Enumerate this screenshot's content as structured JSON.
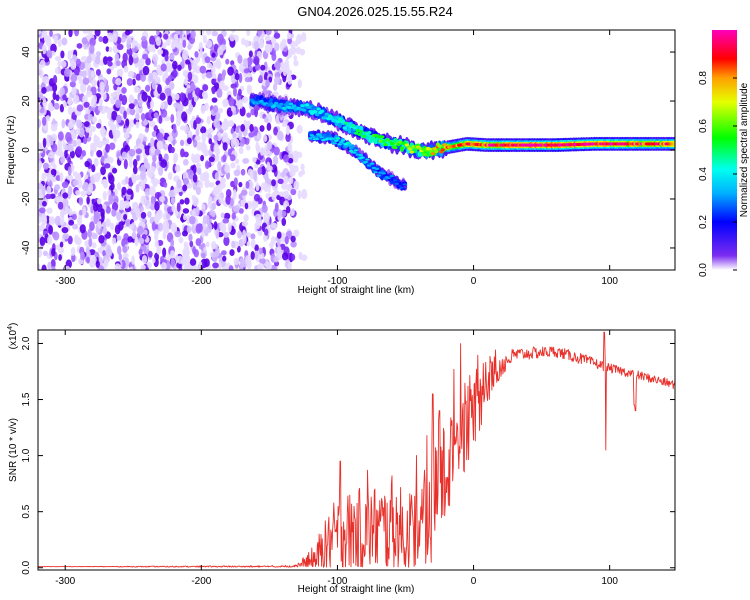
{
  "title": "GN04.2026.025.15.55.R24",
  "chart_data": [
    {
      "type": "heatmap",
      "name": "spectrogram",
      "xlabel": "Height of straight line (km)",
      "ylabel": "Frequency (Hz)",
      "xlim": [
        -320,
        148
      ],
      "ylim": [
        -49,
        49
      ],
      "xticks": [
        -300,
        -200,
        -100,
        0,
        100
      ],
      "xtick_labels": [
        "-300",
        "-200",
        "-100",
        "0",
        "100"
      ],
      "yticks": [
        -40,
        -20,
        0,
        20,
        40
      ],
      "ytick_labels": [
        "-40",
        "-20",
        "0",
        "20",
        "40"
      ],
      "noise_region": {
        "x_from": -320,
        "x_to": -132
      },
      "ridge": [
        {
          "x": -163,
          "y": 20.5,
          "a": 0.3
        },
        {
          "x": -150,
          "y": 19.0,
          "a": 0.32
        },
        {
          "x": -140,
          "y": 18.0,
          "a": 0.34
        },
        {
          "x": -125,
          "y": 17.5,
          "a": 0.36
        },
        {
          "x": -112,
          "y": 15.0,
          "a": 0.38
        },
        {
          "x": -100,
          "y": 12.0,
          "a": 0.4
        },
        {
          "x": -88,
          "y": 8.5,
          "a": 0.45
        },
        {
          "x": -78,
          "y": 6.0,
          "a": 0.5
        },
        {
          "x": -68,
          "y": 4.0,
          "a": 0.55
        },
        {
          "x": -55,
          "y": 2.0,
          "a": 0.6
        },
        {
          "x": -45,
          "y": 0.5,
          "a": 0.65
        },
        {
          "x": -35,
          "y": -0.5,
          "a": 0.7
        },
        {
          "x": -25,
          "y": 0.5,
          "a": 0.75
        },
        {
          "x": -15,
          "y": 1.5,
          "a": 0.8
        },
        {
          "x": -5,
          "y": 2.5,
          "a": 0.85
        },
        {
          "x": 10,
          "y": 2.0,
          "a": 0.9
        },
        {
          "x": 30,
          "y": 2.0,
          "a": 0.95
        },
        {
          "x": 60,
          "y": 2.0,
          "a": 0.97
        },
        {
          "x": 90,
          "y": 2.5,
          "a": 0.95
        },
        {
          "x": 120,
          "y": 2.5,
          "a": 0.9
        },
        {
          "x": 148,
          "y": 2.5,
          "a": 0.85
        }
      ],
      "branch": [
        {
          "x": -120,
          "y": 6.0,
          "a": 0.35
        },
        {
          "x": -105,
          "y": 5.0,
          "a": 0.4
        },
        {
          "x": -90,
          "y": 1.0,
          "a": 0.4
        },
        {
          "x": -80,
          "y": -4.0,
          "a": 0.35
        },
        {
          "x": -70,
          "y": -9.0,
          "a": 0.3
        },
        {
          "x": -60,
          "y": -12.0,
          "a": 0.28
        },
        {
          "x": -50,
          "y": -15.0,
          "a": 0.25
        }
      ],
      "colorbar": {
        "label": "Normalized spectral amplitude",
        "range": [
          0,
          1
        ],
        "ticks": [
          0.0,
          0.2,
          0.4,
          0.6,
          0.8
        ],
        "tick_labels": [
          "0.0",
          "0.2",
          "0.4",
          "0.6",
          "0.8"
        ],
        "colormap": [
          "#ffffff",
          "#5500ee",
          "#0000ff",
          "#00ffff",
          "#00ff00",
          "#ffff00",
          "#ff0000",
          "#ff00cc"
        ]
      }
    },
    {
      "type": "line",
      "name": "snr",
      "xlabel": "Height of straight line (km)",
      "ylabel": "SNR (10 * v/v)",
      "y_multiplier": "(x10",
      "y_multiplier_exp": "4",
      "y_multiplier_close": ")",
      "xlim": [
        -320,
        148
      ],
      "ylim": [
        -0.02,
        2.12
      ],
      "xticks": [
        -300,
        -200,
        -100,
        0,
        100
      ],
      "xtick_labels": [
        "-300",
        "-200",
        "-100",
        "0",
        "100"
      ],
      "yticks": [
        0.0,
        0.5,
        1.0,
        1.5,
        2.0
      ],
      "ytick_labels": [
        "0.0",
        "0.5",
        "1.0",
        "1.5",
        "2.0"
      ],
      "color": "#e8302a",
      "envelope": [
        [
          -320,
          0.01,
          0.0
        ],
        [
          -140,
          0.01,
          0.01
        ],
        [
          -130,
          0.02,
          0.02
        ],
        [
          -120,
          0.05,
          0.1
        ],
        [
          -110,
          0.15,
          0.25
        ],
        [
          -100,
          0.3,
          0.35
        ],
        [
          -80,
          0.35,
          0.4
        ],
        [
          -60,
          0.35,
          0.4
        ],
        [
          -45,
          0.3,
          0.4
        ],
        [
          -35,
          0.4,
          0.45
        ],
        [
          -28,
          0.6,
          0.5
        ],
        [
          -20,
          0.85,
          0.5
        ],
        [
          -10,
          1.2,
          0.45
        ],
        [
          0,
          1.4,
          0.35
        ],
        [
          15,
          1.75,
          0.15
        ],
        [
          30,
          1.9,
          0.06
        ],
        [
          60,
          1.93,
          0.05
        ],
        [
          80,
          1.86,
          0.05
        ],
        [
          100,
          1.78,
          0.04
        ],
        [
          120,
          1.72,
          0.04
        ],
        [
          148,
          1.63,
          0.04
        ]
      ],
      "spikes": [
        [
          -98,
          0.95
        ],
        [
          -78,
          0.87
        ],
        [
          -60,
          0.82
        ],
        [
          -36,
          0.87
        ],
        [
          -30,
          1.55
        ],
        [
          -25,
          1.4
        ],
        [
          96,
          2.1
        ],
        [
          97,
          1.05
        ],
        [
          118,
          1.45
        ],
        [
          119,
          1.4
        ]
      ]
    }
  ]
}
